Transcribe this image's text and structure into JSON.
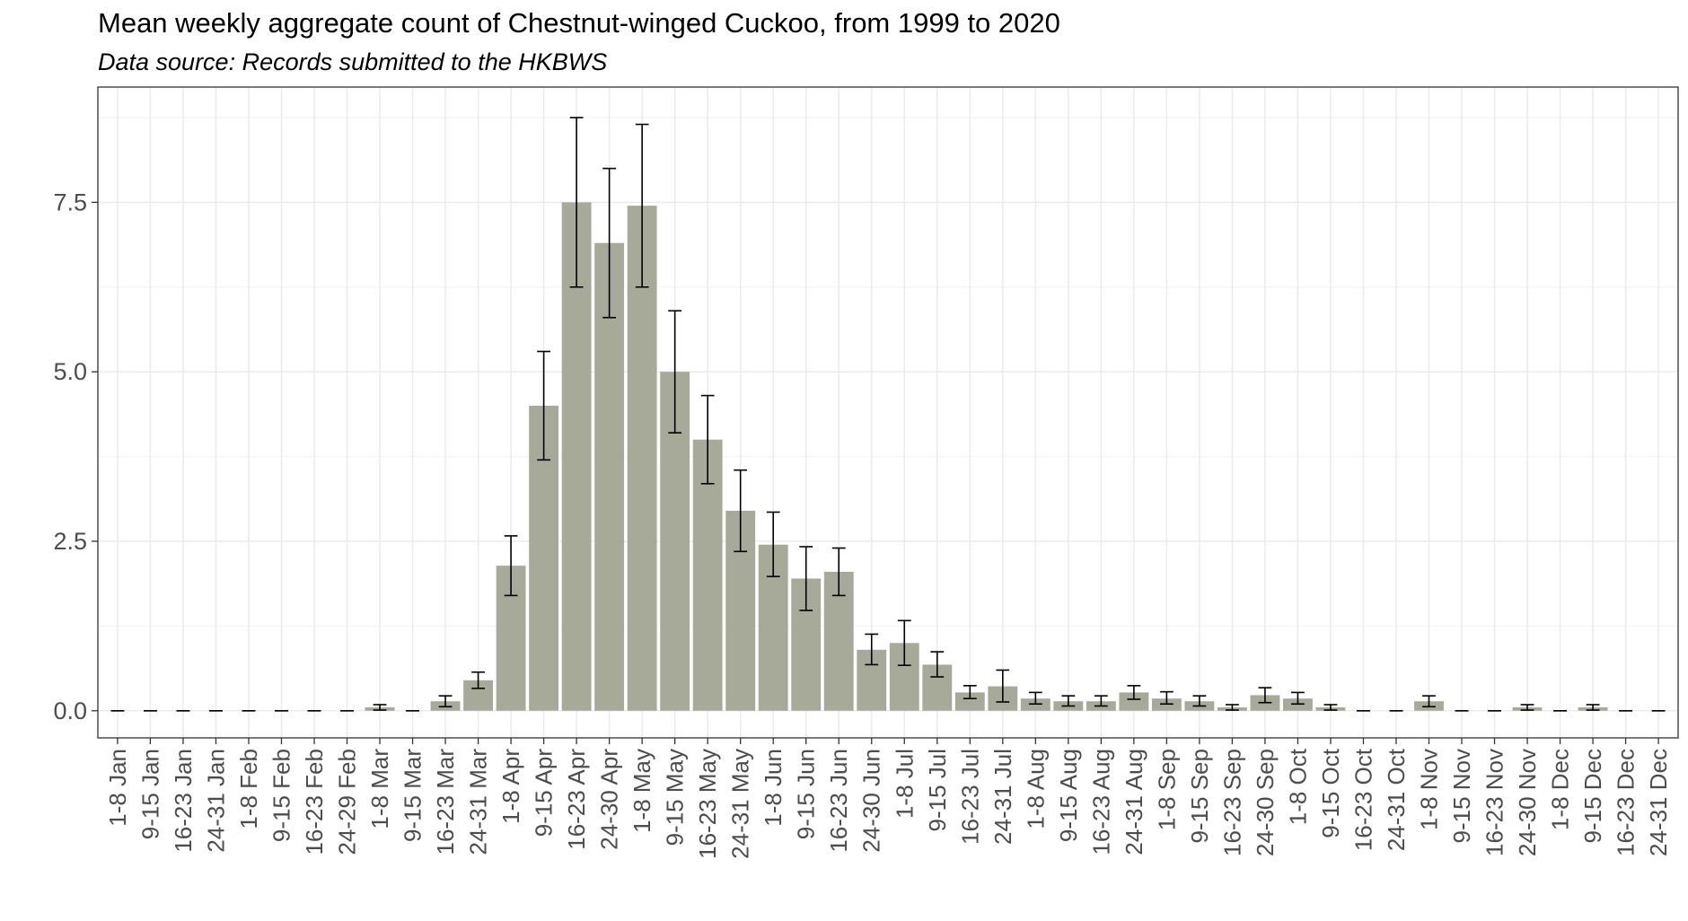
{
  "chart_data": {
    "type": "bar",
    "title": "Mean weekly aggregate count of Chestnut-winged Cuckoo, from 1999 to 2020",
    "subtitle": "Data source: Records submitted to the HKBWS",
    "xlabel": "",
    "ylabel": "",
    "ylim": [
      -0.4,
      9.2
    ],
    "yticks": [
      0.0,
      2.5,
      5.0,
      7.5
    ],
    "ytick_labels": [
      "0.0",
      "2.5",
      "5.0",
      "7.5"
    ],
    "grid": true,
    "bar_color": "#a7aa99",
    "errorbar_color": "#000000",
    "categories": [
      "1-8 Jan",
      "9-15 Jan",
      "16-23 Jan",
      "24-31 Jan",
      "1-8 Feb",
      "9-15 Feb",
      "16-23 Feb",
      "24-29 Feb",
      "1-8 Mar",
      "9-15 Mar",
      "16-23 Mar",
      "24-31 Mar",
      "1-8 Apr",
      "9-15 Apr",
      "16-23 Apr",
      "24-30 Apr",
      "1-8 May",
      "9-15 May",
      "16-23 May",
      "24-31 May",
      "1-8 Jun",
      "9-15 Jun",
      "16-23 Jun",
      "24-30 Jun",
      "1-8 Jul",
      "9-15 Jul",
      "16-23 Jul",
      "24-31 Jul",
      "1-8 Aug",
      "9-15 Aug",
      "16-23 Aug",
      "24-31 Aug",
      "1-8 Sep",
      "9-15 Sep",
      "16-23 Sep",
      "24-30 Sep",
      "1-8 Oct",
      "9-15 Oct",
      "16-23 Oct",
      "24-31 Oct",
      "1-8 Nov",
      "9-15 Nov",
      "16-23 Nov",
      "24-30 Nov",
      "1-8 Dec",
      "9-15 Dec",
      "16-23 Dec",
      "24-31 Dec"
    ],
    "values": [
      0,
      0,
      0,
      0,
      0,
      0,
      0,
      0,
      0.05,
      0,
      0.14,
      0.45,
      2.14,
      4.5,
      7.5,
      6.9,
      7.45,
      5.0,
      4.0,
      2.95,
      2.45,
      1.95,
      2.05,
      0.9,
      1.0,
      0.68,
      0.27,
      0.36,
      0.18,
      0.14,
      0.14,
      0.27,
      0.18,
      0.14,
      0.05,
      0.23,
      0.18,
      0.05,
      0,
      0,
      0.14,
      0,
      0,
      0.05,
      0,
      0.05,
      0,
      0
    ],
    "error_low": [
      0,
      0,
      0,
      0,
      0,
      0,
      0,
      0,
      0.01,
      0,
      0.06,
      0.33,
      1.7,
      3.7,
      6.25,
      5.8,
      6.25,
      4.1,
      3.35,
      2.35,
      1.98,
      1.48,
      1.7,
      0.68,
      0.67,
      0.5,
      0.18,
      0.13,
      0.1,
      0.07,
      0.07,
      0.17,
      0.1,
      0.07,
      0.01,
      0.12,
      0.1,
      0.01,
      0,
      0,
      0.06,
      0,
      0,
      0.01,
      0,
      0.01,
      0,
      0
    ],
    "error_high": [
      0,
      0,
      0,
      0,
      0,
      0,
      0,
      0,
      0.09,
      0,
      0.22,
      0.57,
      2.58,
      5.3,
      8.75,
      8.0,
      8.65,
      5.9,
      4.65,
      3.55,
      2.93,
      2.42,
      2.4,
      1.13,
      1.33,
      0.87,
      0.37,
      0.6,
      0.27,
      0.22,
      0.22,
      0.37,
      0.28,
      0.22,
      0.09,
      0.34,
      0.27,
      0.09,
      0,
      0,
      0.22,
      0,
      0,
      0.09,
      0,
      0.09,
      0,
      0
    ]
  }
}
